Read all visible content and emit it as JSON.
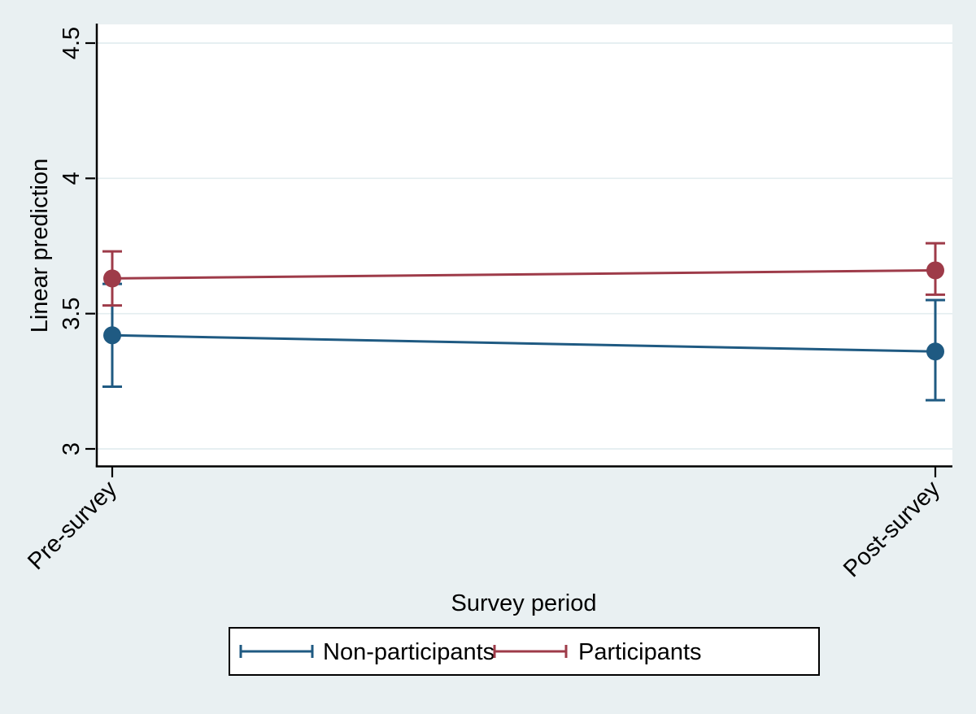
{
  "chart_data": {
    "type": "line",
    "title": "",
    "xlabel": "Survey period",
    "ylabel": "Linear prediction",
    "categories": [
      "Pre-survey",
      "Post-survey"
    ],
    "yticks": [
      3,
      3.5,
      4,
      4.5
    ],
    "ylim": [
      2.94,
      4.57
    ],
    "grid": true,
    "legend_position": "bottom",
    "error_bars": true,
    "series": [
      {
        "name": "Non-participants",
        "color": "#1F5A82",
        "marker": "circle",
        "values": [
          3.42,
          3.36
        ],
        "ci_low": [
          3.23,
          3.18
        ],
        "ci_high": [
          3.61,
          3.55
        ]
      },
      {
        "name": "Participants",
        "color": "#9E3B49",
        "marker": "circle",
        "values": [
          3.63,
          3.66
        ],
        "ci_low": [
          3.53,
          3.57
        ],
        "ci_high": [
          3.73,
          3.76
        ]
      }
    ]
  },
  "colors": {
    "page_background": "#E9F0F2",
    "plot_background": "#FFFFFF",
    "gridline": "#E3EDEF",
    "axis_line": "#000000",
    "text": "#000000",
    "legend_background": "#FFFFFF",
    "legend_border": "#000000",
    "series_nonparticipants": "#1F5A82",
    "series_participants": "#9E3B49"
  }
}
